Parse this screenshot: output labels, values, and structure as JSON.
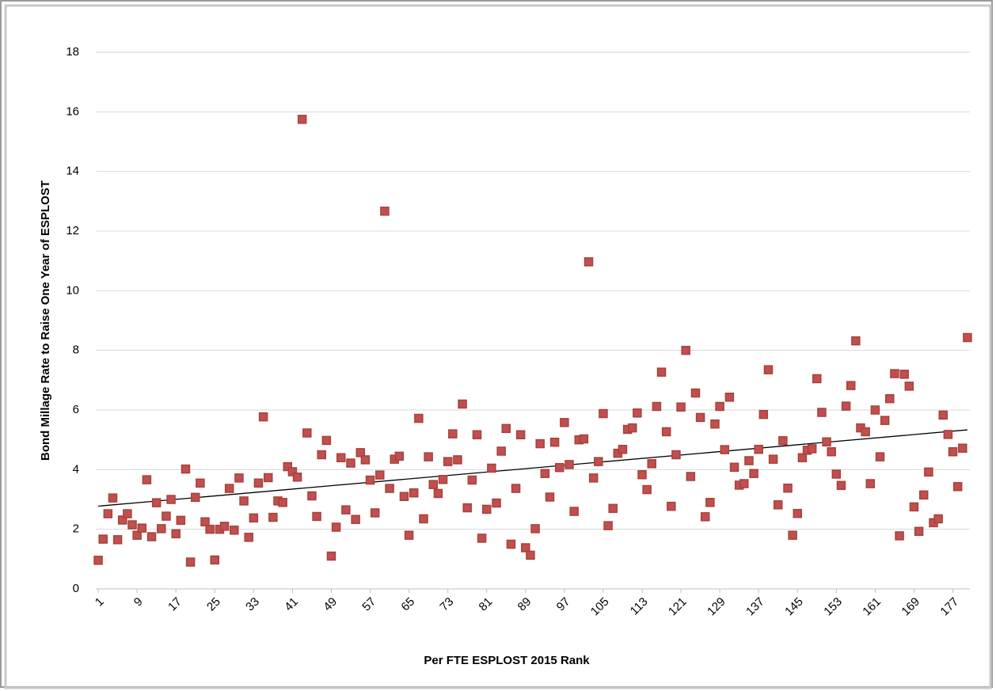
{
  "chart_data": {
    "type": "scatter",
    "x_label": "Per FTE ESPLOST 2015 Rank",
    "y_label": "Bond Millage Rate to Raise One Year of ESPLOST",
    "x": [
      1,
      2,
      3,
      4,
      5,
      6,
      7,
      8,
      9,
      10,
      11,
      12,
      13,
      14,
      15,
      16,
      17,
      18,
      19,
      20,
      21,
      22,
      23,
      24,
      25,
      26,
      27,
      28,
      29,
      30,
      31,
      32,
      33,
      34,
      35,
      36,
      37,
      38,
      39,
      40,
      41,
      42,
      43,
      44,
      45,
      46,
      47,
      48,
      49,
      50,
      51,
      52,
      53,
      54,
      55,
      56,
      57,
      58,
      59,
      60,
      61,
      62,
      63,
      64,
      65,
      66,
      67,
      68,
      69,
      70,
      71,
      72,
      73,
      74,
      75,
      76,
      77,
      78,
      79,
      80,
      81,
      82,
      83,
      84,
      85,
      86,
      87,
      88,
      89,
      90,
      91,
      92,
      93,
      94,
      95,
      96,
      97,
      98,
      99,
      100,
      101,
      102,
      103,
      104,
      105,
      106,
      107,
      108,
      109,
      110,
      111,
      112,
      113,
      114,
      115,
      116,
      117,
      118,
      119,
      120,
      121,
      122,
      123,
      124,
      125,
      126,
      127,
      128,
      129,
      130,
      131,
      132,
      133,
      134,
      135,
      136,
      137,
      138,
      139,
      140,
      141,
      142,
      143,
      144,
      145,
      146,
      147,
      148,
      149,
      150,
      151,
      152,
      153,
      154,
      155,
      156,
      157,
      158,
      159,
      160,
      161,
      162,
      163,
      164,
      165,
      166,
      167,
      168,
      169,
      170,
      171,
      172,
      173,
      174,
      175,
      176,
      177,
      178,
      179,
      180
    ],
    "values": [
      0.96,
      1.67,
      2.52,
      3.05,
      1.65,
      2.31,
      2.52,
      2.15,
      1.8,
      2.04,
      3.66,
      1.75,
      2.89,
      2.02,
      2.44,
      3.0,
      1.85,
      2.3,
      4.02,
      0.9,
      3.07,
      3.55,
      2.25,
      2.0,
      0.97,
      2.0,
      2.1,
      3.37,
      1.97,
      3.72,
      2.95,
      1.73,
      2.38,
      3.55,
      5.77,
      3.73,
      2.4,
      2.95,
      2.9,
      4.1,
      3.93,
      3.75,
      15.75,
      5.23,
      3.12,
      2.43,
      4.5,
      4.98,
      1.1,
      2.07,
      4.4,
      2.65,
      4.22,
      2.33,
      4.57,
      4.33,
      3.65,
      2.55,
      3.82,
      12.67,
      3.37,
      4.35,
      4.45,
      3.1,
      1.8,
      3.22,
      5.72,
      2.35,
      4.43,
      3.5,
      3.2,
      3.67,
      4.27,
      5.2,
      4.33,
      6.2,
      2.72,
      3.65,
      5.17,
      1.7,
      2.67,
      4.05,
      2.88,
      4.62,
      5.38,
      1.5,
      3.37,
      5.17,
      1.38,
      1.13,
      2.02,
      4.87,
      3.87,
      3.08,
      4.92,
      4.07,
      5.58,
      4.17,
      2.6,
      5.0,
      5.03,
      10.97,
      3.72,
      4.27,
      5.88,
      2.12,
      2.7,
      4.55,
      4.68,
      5.35,
      5.4,
      5.9,
      3.83,
      3.33,
      4.2,
      6.12,
      7.27,
      5.27,
      2.77,
      4.5,
      6.1,
      8.0,
      3.77,
      6.57,
      5.75,
      2.42,
      2.9,
      5.53,
      6.12,
      4.67,
      6.43,
      4.08,
      3.48,
      3.53,
      4.3,
      3.87,
      4.68,
      5.85,
      7.35,
      4.35,
      2.82,
      4.97,
      3.38,
      1.8,
      2.53,
      4.4,
      4.65,
      4.7,
      7.05,
      5.92,
      4.93,
      4.6,
      3.85,
      3.47,
      6.13,
      6.82,
      8.32,
      5.4,
      5.27,
      3.53,
      6.0,
      4.43,
      5.65,
      6.38,
      7.22,
      1.78,
      7.2,
      6.8,
      2.75,
      1.93,
      3.15,
      3.92,
      2.22,
      2.35,
      5.83,
      5.18,
      4.6,
      3.43,
      4.72,
      8.43
    ],
    "color": "#c0504d",
    "xlim": [
      0.5,
      180.5
    ],
    "xticks": [
      1,
      9,
      17,
      25,
      33,
      41,
      49,
      57,
      65,
      73,
      81,
      89,
      97,
      105,
      113,
      121,
      129,
      137,
      145,
      153,
      161,
      169,
      177
    ],
    "ylim": [
      0,
      18
    ],
    "yticks": [
      0,
      2,
      4,
      6,
      8,
      10,
      12,
      14,
      16,
      18
    ],
    "grid": true,
    "trendline": true
  }
}
